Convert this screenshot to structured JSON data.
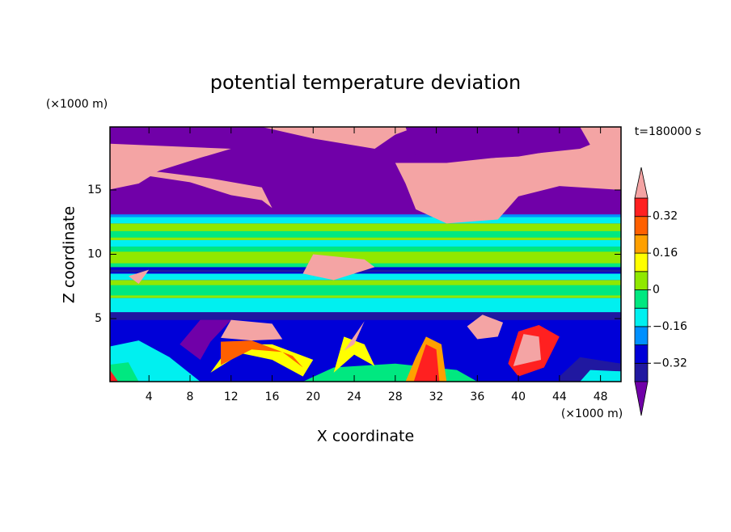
{
  "chart_data": {
    "type": "contour",
    "title": "potential temperature deviation",
    "x_label": "X coordinate",
    "y_label": "Z coordinate",
    "x_unit": "(×1000 m)",
    "y_unit": "(×1000 m)",
    "time_label": "t=180000 s",
    "xlim": [
      0.2,
      50
    ],
    "ylim": [
      0.1,
      19.9
    ],
    "xticks": [
      4,
      8,
      12,
      16,
      20,
      24,
      28,
      32,
      36,
      40,
      44,
      48
    ],
    "yticks": [
      5,
      10,
      15
    ],
    "levels": [
      -0.4,
      -0.32,
      -0.24,
      -0.16,
      -0.08,
      0,
      0.08,
      0.16,
      0.24,
      0.32,
      0.4
    ],
    "colors": [
      "#7000a8",
      "#2018a0",
      "#0000d8",
      "#0090ff",
      "#00f0f0",
      "#00e880",
      "#90e800",
      "#ffff00",
      "#ffa000",
      "#ff6000",
      "#ff2020",
      "#f4a4a4"
    ],
    "colorbar_ticks": [
      0.32,
      0.16,
      0,
      {
        "value": -0.16,
        "label": "−0.16"
      },
      {
        "value": -0.32,
        "label": "−0.32"
      }
    ]
  }
}
